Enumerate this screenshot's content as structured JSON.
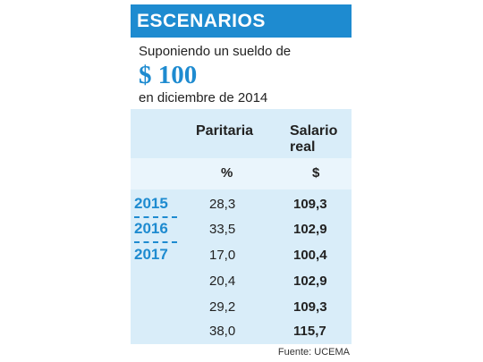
{
  "header": {
    "title": "ESCENARIOS"
  },
  "intro": {
    "line1": "Suponiendo un sueldo de",
    "amount": "$ 100",
    "line3": "en diciembre de 2014"
  },
  "table": {
    "col_paritaria": "Paritaria",
    "col_salario": "Salario real",
    "unit_paritaria": "%",
    "unit_salario": "$",
    "rows": [
      {
        "year": "2015",
        "paritaria": "28,3",
        "salario": "109,3"
      },
      {
        "year": "2016",
        "paritaria": "33,5",
        "salario": "102,9"
      },
      {
        "year": "2017",
        "paritaria": "17,0",
        "salario": "100,4"
      },
      {
        "year": "",
        "paritaria": "20,4",
        "salario": "102,9"
      },
      {
        "year": "",
        "paritaria": "29,2",
        "salario": "109,3"
      },
      {
        "year": "",
        "paritaria": "38,0",
        "salario": "115,7"
      }
    ]
  },
  "source": "Fuente: UCEMA"
}
